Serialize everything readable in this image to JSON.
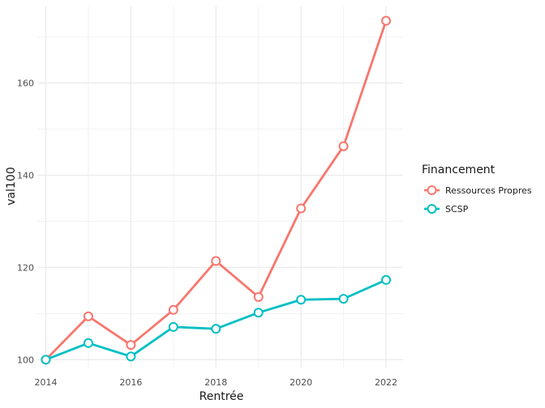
{
  "chart_data": {
    "type": "line",
    "xlabel": "Rentrée",
    "ylabel": "val100",
    "x": [
      2014,
      2015,
      2016,
      2017,
      2018,
      2019,
      2020,
      2021,
      2022
    ],
    "xticks": [
      2014,
      2016,
      2018,
      2020,
      2022
    ],
    "yticks": [
      100,
      120,
      140,
      160
    ],
    "xlim": [
      2013.8,
      2022.4
    ],
    "ylim": [
      98.3,
      176.6
    ],
    "grid": true,
    "legend": {
      "title": "Financement",
      "placement": "right"
    },
    "series": [
      {
        "name": "Ressources Propres",
        "color": "#F8766D",
        "values": [
          100.0,
          109.4,
          103.2,
          110.8,
          121.4,
          113.6,
          132.8,
          146.3,
          173.5
        ]
      },
      {
        "name": "SCSP",
        "color": "#00BFC4",
        "values": [
          100.0,
          103.6,
          100.7,
          107.1,
          106.7,
          110.2,
          113.0,
          113.2,
          117.3
        ]
      }
    ]
  }
}
